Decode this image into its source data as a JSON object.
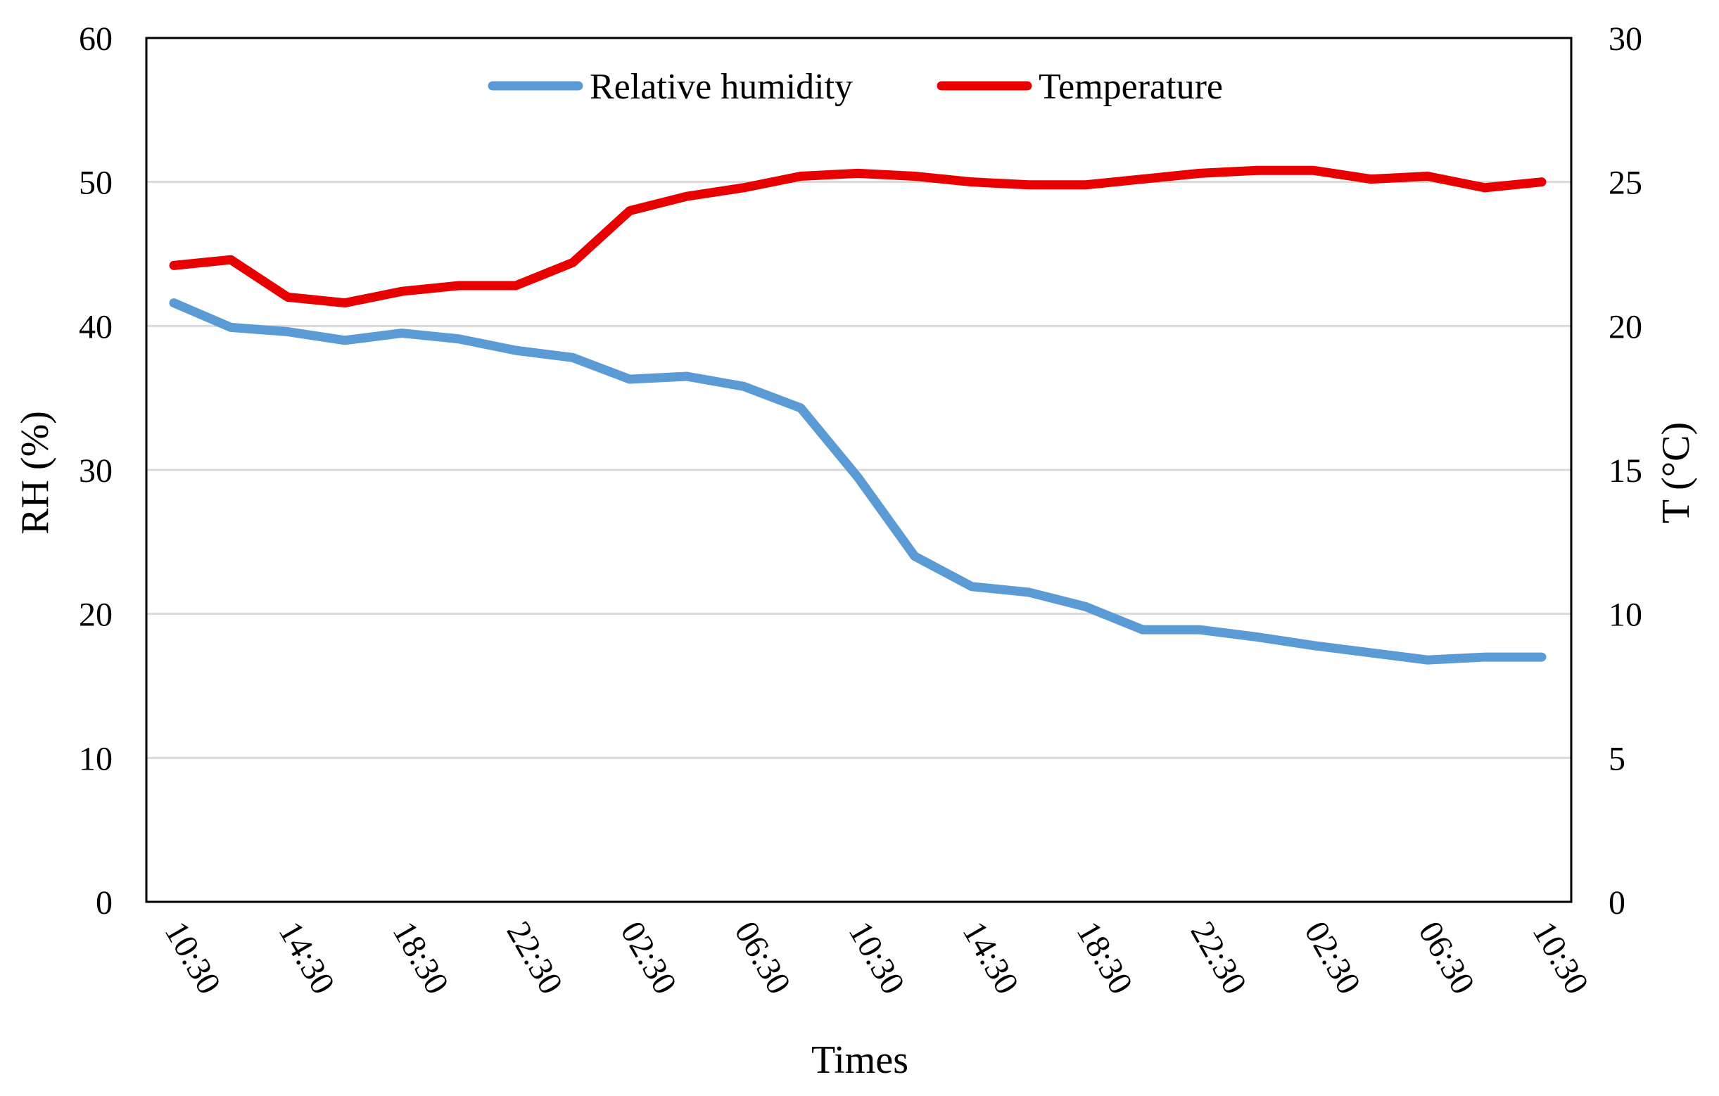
{
  "chart_data": {
    "type": "line",
    "title": "",
    "xlabel": "Times",
    "ylabel": "RH (%)",
    "y2label": "T (°C)",
    "ylim": [
      0,
      60
    ],
    "y2lim": [
      0,
      30
    ],
    "yticks": [
      "0",
      "10",
      "20",
      "30",
      "40",
      "50",
      "60"
    ],
    "y2ticks": [
      "0",
      "5",
      "10",
      "15",
      "20",
      "25",
      "30"
    ],
    "x_tick_labels": [
      "10:30",
      "14:30",
      "18:30",
      "22:30",
      "02:30",
      "06:30",
      "10:30",
      "14:30",
      "18:30",
      "22:30",
      "02:30",
      "06:30",
      "10:30"
    ],
    "x": [
      "10:30",
      "12:30",
      "14:30",
      "16:30",
      "18:30",
      "20:30",
      "22:30",
      "00:30",
      "02:30",
      "04:30",
      "06:30",
      "08:30",
      "10:30",
      "12:30",
      "14:30",
      "16:30",
      "18:30",
      "20:30",
      "22:30",
      "00:30",
      "02:30",
      "04:30",
      "06:30",
      "08:30",
      "10:30"
    ],
    "grid": true,
    "legend_position": "top-center",
    "series": [
      {
        "name": "Relative humidity",
        "axis": "left",
        "color": "#5B9BD5",
        "values": [
          41.6,
          39.9,
          39.6,
          39.0,
          39.5,
          39.1,
          38.3,
          37.8,
          36.3,
          36.5,
          35.8,
          34.3,
          29.5,
          24.0,
          21.9,
          21.5,
          20.5,
          18.9,
          18.9,
          18.4,
          17.8,
          17.3,
          16.8,
          17.0,
          17.0
        ]
      },
      {
        "name": "Temperature",
        "axis": "right",
        "color": "#E80000",
        "values": [
          22.1,
          22.3,
          21.0,
          20.8,
          21.2,
          21.4,
          21.4,
          22.2,
          24.0,
          24.5,
          24.8,
          25.2,
          25.3,
          25.2,
          25.0,
          24.9,
          24.9,
          25.1,
          25.3,
          25.4,
          25.4,
          25.1,
          25.2,
          24.8,
          25.0
        ]
      }
    ]
  }
}
